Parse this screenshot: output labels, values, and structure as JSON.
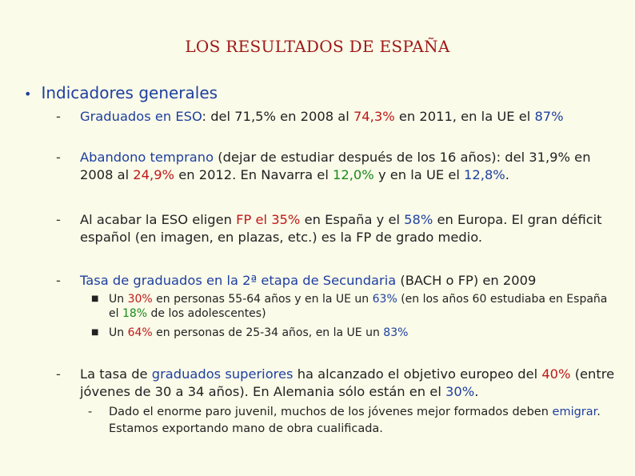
{
  "title": "LOS RESULTADOS DE ESPAÑA",
  "heading": "Indicadores generales",
  "item1": {
    "a": "Graduados en ESO",
    "b": ": del 71,5% en 2008 al ",
    "c": "74,3%",
    "d": " en 2011, en la UE el ",
    "e": "87%"
  },
  "item2": {
    "a": "Abandono temprano",
    "b": " (dejar de estudiar después de los 16 años): del 31,9% en 2008 al ",
    "c": "24,9%",
    "d": " en 2012. En Navarra el ",
    "e": "12,0%",
    "f": " y en la UE el ",
    "g": "12,8%",
    "h": "."
  },
  "item3": {
    "a": "Al acabar la ESO eligen ",
    "b": "FP el 35%",
    "c": " en España y el ",
    "d": "58%",
    "e": " en Europa. El gran déficit español (en imagen, en plazas, etc.) es la FP de grado medio."
  },
  "item4": {
    "a": "Tasa de graduados en la 2ª etapa de Secundaria",
    "b": " (BACH o FP) en 2009"
  },
  "sub1": {
    "a": "Un ",
    "b": "30%",
    "c": " en personas 55-64 años y en la UE un ",
    "d": "63%",
    "e": " (en los años 60 estudiaba en España el ",
    "f": "18%",
    "g": " de los adolescentes)"
  },
  "sub2": {
    "a": "Un ",
    "b": "64%",
    "c": " en personas de 25-34 años, en la UE un ",
    "d": "83%"
  },
  "item5": {
    "a": "La tasa de ",
    "b": "graduados superiores",
    "c": " ha alcanzado el objetivo europeo del ",
    "d": "40%",
    "e": " (entre jóvenes de 30 a 34 años). En Alemania sólo están en el ",
    "f": "30%",
    "g": "."
  },
  "note": {
    "a": "Dado el enorme paro juvenil, muchos de los jóvenes mejor formados deben ",
    "b": "emigrar",
    "c": ". Estamos exportando mano de obra cualificada."
  }
}
